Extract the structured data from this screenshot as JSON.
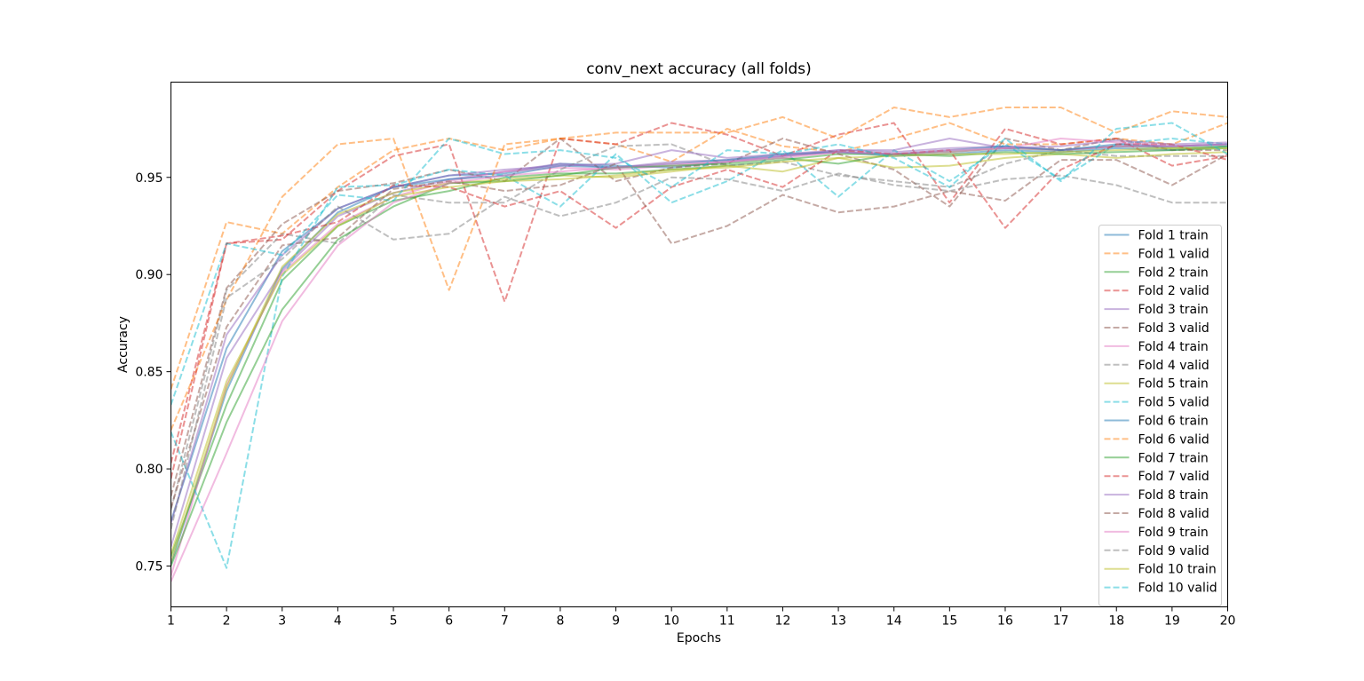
{
  "chart_data": {
    "type": "line",
    "title": "conv_next accuracy (all folds)",
    "xlabel": "Epochs",
    "ylabel": "Accuracy",
    "xlim": [
      1,
      20
    ],
    "ylim": [
      0.729,
      0.999
    ],
    "xticks": [
      1,
      2,
      3,
      4,
      5,
      6,
      7,
      8,
      9,
      10,
      11,
      12,
      13,
      14,
      15,
      16,
      17,
      18,
      19,
      20
    ],
    "yticks": [
      "0.75",
      "0.80",
      "0.85",
      "0.90",
      "0.95"
    ],
    "grid": false,
    "legend_position": "lower-right",
    "x": [
      1,
      2,
      3,
      4,
      5,
      6,
      7,
      8,
      9,
      10,
      11,
      12,
      13,
      14,
      15,
      16,
      17,
      18,
      19,
      20
    ],
    "series": [
      {
        "name": "Fold 1 train",
        "color": "#1f77b4",
        "style": "solid",
        "values": [
          0.751,
          0.84,
          0.903,
          0.932,
          0.945,
          0.951,
          0.952,
          0.957,
          0.956,
          0.955,
          0.958,
          0.961,
          0.963,
          0.961,
          0.962,
          0.964,
          0.963,
          0.965,
          0.964,
          0.966
        ]
      },
      {
        "name": "Fold 1 valid",
        "color": "#ff7f0e",
        "style": "dashed",
        "values": [
          0.841,
          0.927,
          0.921,
          0.945,
          0.964,
          0.97,
          0.964,
          0.97,
          0.967,
          0.958,
          0.975,
          0.966,
          0.963,
          0.97,
          0.978,
          0.967,
          0.967,
          0.97,
          0.967,
          0.978
        ]
      },
      {
        "name": "Fold 2 train",
        "color": "#2ca02c",
        "style": "solid",
        "values": [
          0.755,
          0.833,
          0.897,
          0.925,
          0.938,
          0.943,
          0.95,
          0.952,
          0.952,
          0.954,
          0.956,
          0.959,
          0.962,
          0.962,
          0.963,
          0.965,
          0.964,
          0.966,
          0.965,
          0.966
        ]
      },
      {
        "name": "Fold 2 valid",
        "color": "#d62728",
        "style": "dashed",
        "values": [
          0.803,
          0.916,
          0.918,
          0.943,
          0.961,
          0.967,
          0.886,
          0.97,
          0.967,
          0.978,
          0.972,
          0.961,
          0.972,
          0.978,
          0.937,
          0.975,
          0.967,
          0.97,
          0.956,
          0.961
        ]
      },
      {
        "name": "Fold 3 train",
        "color": "#9467bd",
        "style": "solid",
        "values": [
          0.76,
          0.857,
          0.902,
          0.93,
          0.942,
          0.949,
          0.953,
          0.957,
          0.955,
          0.958,
          0.959,
          0.961,
          0.964,
          0.963,
          0.965,
          0.966,
          0.964,
          0.966,
          0.966,
          0.967
        ]
      },
      {
        "name": "Fold 3 valid",
        "color": "#8c564b",
        "style": "dashed",
        "values": [
          0.786,
          0.893,
          0.926,
          0.943,
          0.947,
          0.954,
          0.948,
          0.97,
          0.948,
          0.955,
          0.957,
          0.97,
          0.962,
          0.954,
          0.935,
          0.97,
          0.964,
          0.97,
          0.964,
          0.964
        ]
      },
      {
        "name": "Fold 4 train",
        "color": "#e377c2",
        "style": "solid",
        "values": [
          0.745,
          0.843,
          0.901,
          0.926,
          0.94,
          0.948,
          0.953,
          0.955,
          0.954,
          0.956,
          0.958,
          0.961,
          0.963,
          0.962,
          0.963,
          0.965,
          0.964,
          0.966,
          0.966,
          0.967
        ]
      },
      {
        "name": "Fold 4 valid",
        "color": "#7f7f7f",
        "style": "dashed",
        "values": [
          0.779,
          0.892,
          0.921,
          0.916,
          0.941,
          0.937,
          0.937,
          0.954,
          0.966,
          0.967,
          0.956,
          0.958,
          0.951,
          0.948,
          0.945,
          0.957,
          0.964,
          0.961,
          0.961,
          0.961
        ]
      },
      {
        "name": "Fold 5 train",
        "color": "#bcbd22",
        "style": "solid",
        "values": [
          0.752,
          0.842,
          0.904,
          0.931,
          0.942,
          0.947,
          0.949,
          0.951,
          0.95,
          0.953,
          0.956,
          0.953,
          0.96,
          0.955,
          0.956,
          0.96,
          0.962,
          0.96,
          0.962,
          0.963
        ]
      },
      {
        "name": "Fold 5 valid",
        "color": "#17becf",
        "style": "dashed",
        "values": [
          0.819,
          0.749,
          0.899,
          0.945,
          0.946,
          0.954,
          0.951,
          0.935,
          0.962,
          0.937,
          0.948,
          0.964,
          0.94,
          0.964,
          0.948,
          0.967,
          0.949,
          0.967,
          0.97,
          0.967
        ]
      },
      {
        "name": "Fold 6 train",
        "color": "#1f77b4",
        "style": "solid",
        "values": [
          0.773,
          0.862,
          0.912,
          0.934,
          0.945,
          0.949,
          0.951,
          0.956,
          0.955,
          0.957,
          0.959,
          0.962,
          0.963,
          0.962,
          0.964,
          0.966,
          0.964,
          0.967,
          0.966,
          0.967
        ]
      },
      {
        "name": "Fold 6 valid",
        "color": "#ff7f0e",
        "style": "dashed",
        "values": [
          0.82,
          0.887,
          0.94,
          0.967,
          0.97,
          0.892,
          0.967,
          0.97,
          0.973,
          0.973,
          0.973,
          0.981,
          0.97,
          0.986,
          0.981,
          0.986,
          0.986,
          0.973,
          0.984,
          0.981
        ]
      },
      {
        "name": "Fold 7 train",
        "color": "#2ca02c",
        "style": "solid",
        "values": [
          0.75,
          0.824,
          0.882,
          0.918,
          0.935,
          0.947,
          0.948,
          0.951,
          0.955,
          0.956,
          0.957,
          0.96,
          0.957,
          0.962,
          0.961,
          0.963,
          0.962,
          0.963,
          0.964,
          0.965
        ]
      },
      {
        "name": "Fold 7 valid",
        "color": "#d62728",
        "style": "dashed",
        "values": [
          0.795,
          0.916,
          0.92,
          0.927,
          0.946,
          0.945,
          0.935,
          0.943,
          0.924,
          0.945,
          0.954,
          0.945,
          0.964,
          0.962,
          0.964,
          0.924,
          0.954,
          0.967,
          0.967,
          0.959
        ]
      },
      {
        "name": "Fold 8 train",
        "color": "#9467bd",
        "style": "solid",
        "values": [
          0.772,
          0.869,
          0.91,
          0.934,
          0.945,
          0.951,
          0.954,
          0.956,
          0.957,
          0.964,
          0.96,
          0.962,
          0.964,
          0.964,
          0.97,
          0.965,
          0.966,
          0.969,
          0.967,
          0.968
        ]
      },
      {
        "name": "Fold 8 valid",
        "color": "#8c564b",
        "style": "dashed",
        "values": [
          0.78,
          0.873,
          0.915,
          0.919,
          0.944,
          0.948,
          0.943,
          0.946,
          0.957,
          0.916,
          0.925,
          0.941,
          0.932,
          0.935,
          0.943,
          0.938,
          0.959,
          0.959,
          0.946,
          0.962
        ]
      },
      {
        "name": "Fold 9 train",
        "color": "#e377c2",
        "style": "solid",
        "values": [
          0.742,
          0.808,
          0.876,
          0.915,
          0.937,
          0.947,
          0.951,
          0.953,
          0.955,
          0.957,
          0.958,
          0.96,
          0.963,
          0.962,
          0.964,
          0.965,
          0.97,
          0.968,
          0.966,
          0.967
        ]
      },
      {
        "name": "Fold 9 valid",
        "color": "#7f7f7f",
        "style": "dashed",
        "values": [
          0.769,
          0.888,
          0.908,
          0.935,
          0.918,
          0.921,
          0.94,
          0.93,
          0.937,
          0.95,
          0.949,
          0.943,
          0.952,
          0.946,
          0.943,
          0.949,
          0.951,
          0.946,
          0.937,
          0.937
        ]
      },
      {
        "name": "Fold 10 train",
        "color": "#bcbd22",
        "style": "solid",
        "values": [
          0.756,
          0.845,
          0.9,
          0.925,
          0.94,
          0.945,
          0.948,
          0.949,
          0.951,
          0.954,
          0.955,
          0.958,
          0.96,
          0.961,
          0.962,
          0.962,
          0.963,
          0.964,
          0.965,
          0.965
        ]
      },
      {
        "name": "Fold 10 valid",
        "color": "#17becf",
        "style": "dashed",
        "values": [
          0.833,
          0.916,
          0.91,
          0.941,
          0.938,
          0.97,
          0.962,
          0.964,
          0.96,
          0.945,
          0.964,
          0.962,
          0.967,
          0.96,
          0.945,
          0.97,
          0.948,
          0.975,
          0.978,
          0.962
        ]
      }
    ]
  }
}
